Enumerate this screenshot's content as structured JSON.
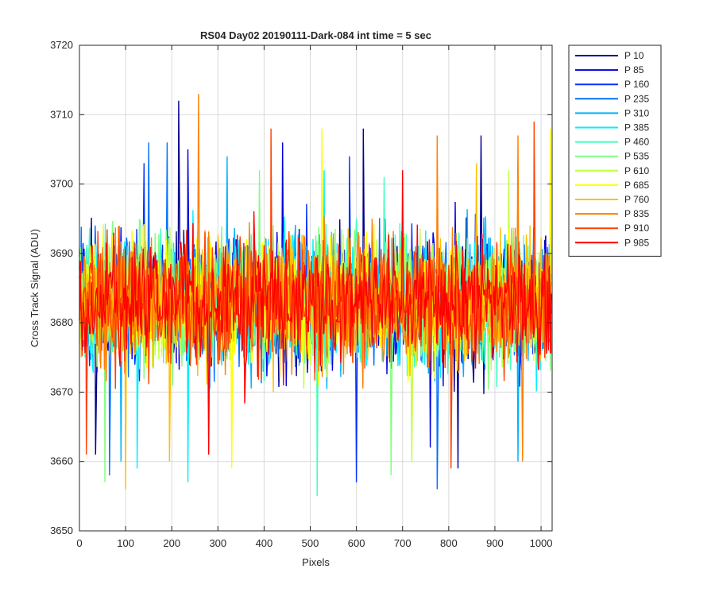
{
  "chart_data": {
    "type": "line",
    "title": "RS04 Day02 20190111-Dark-084 int time = 5 sec",
    "xlabel": "Pixels",
    "ylabel": "Cross Track Signal (ADU)",
    "xlim": [
      0,
      1024
    ],
    "ylim": [
      3650,
      3720
    ],
    "xticks": [
      0,
      100,
      200,
      300,
      400,
      500,
      600,
      700,
      800,
      900,
      1000
    ],
    "yticks": [
      3650,
      3660,
      3670,
      3680,
      3690,
      3700,
      3710,
      3720
    ],
    "grid": true,
    "legend_position": "outside-top-right",
    "noise_summary": {
      "points_per_series": 1024,
      "center": 3683,
      "typical_min": 3661,
      "typical_max": 3705
    },
    "series": [
      {
        "name": "P 10",
        "color": "#00008F",
        "peaks": [
          {
            "x": 215,
            "y": 3712
          },
          {
            "x": 615,
            "y": 3708
          },
          {
            "x": 870,
            "y": 3707
          }
        ],
        "troughs": [
          {
            "x": 35,
            "y": 3661
          },
          {
            "x": 820,
            "y": 3659
          }
        ]
      },
      {
        "name": "P 85",
        "color": "#0000DF",
        "peaks": [
          {
            "x": 235,
            "y": 3705
          },
          {
            "x": 440,
            "y": 3706
          }
        ],
        "troughs": [
          {
            "x": 760,
            "y": 3662
          }
        ]
      },
      {
        "name": "P 160",
        "color": "#0030FF",
        "peaks": [
          {
            "x": 140,
            "y": 3703
          },
          {
            "x": 585,
            "y": 3704
          }
        ],
        "troughs": [
          {
            "x": 600,
            "y": 3657
          }
        ]
      },
      {
        "name": "P 235",
        "color": "#0070FF",
        "peaks": [
          {
            "x": 150,
            "y": 3706
          },
          {
            "x": 190,
            "y": 3706
          }
        ],
        "troughs": [
          {
            "x": 65,
            "y": 3658
          },
          {
            "x": 775,
            "y": 3656
          }
        ]
      },
      {
        "name": "P 310",
        "color": "#00B0FF",
        "peaks": [
          {
            "x": 320,
            "y": 3704
          }
        ],
        "troughs": [
          {
            "x": 90,
            "y": 3660
          },
          {
            "x": 950,
            "y": 3660
          }
        ]
      },
      {
        "name": "P 385",
        "color": "#00F0FF",
        "peaks": [
          {
            "x": 530,
            "y": 3702
          }
        ],
        "troughs": [
          {
            "x": 125,
            "y": 3659
          },
          {
            "x": 235,
            "y": 3657
          }
        ]
      },
      {
        "name": "P 460",
        "color": "#40FFBF",
        "peaks": [
          {
            "x": 660,
            "y": 3701
          }
        ],
        "troughs": [
          {
            "x": 515,
            "y": 3655
          }
        ]
      },
      {
        "name": "P 535",
        "color": "#80FF80",
        "peaks": [
          {
            "x": 390,
            "y": 3702
          }
        ],
        "troughs": [
          {
            "x": 55,
            "y": 3657
          },
          {
            "x": 675,
            "y": 3658
          }
        ]
      },
      {
        "name": "P 610",
        "color": "#BFFF40",
        "peaks": [
          {
            "x": 930,
            "y": 3702
          }
        ],
        "troughs": [
          {
            "x": 720,
            "y": 3660
          }
        ]
      },
      {
        "name": "P 685",
        "color": "#FFFF00",
        "peaks": [
          {
            "x": 525,
            "y": 3708
          },
          {
            "x": 1020,
            "y": 3708
          }
        ],
        "troughs": [
          {
            "x": 330,
            "y": 3659
          }
        ]
      },
      {
        "name": "P 760",
        "color": "#FFBF00",
        "peaks": [
          {
            "x": 860,
            "y": 3703
          }
        ],
        "troughs": [
          {
            "x": 100,
            "y": 3656
          },
          {
            "x": 195,
            "y": 3660
          }
        ]
      },
      {
        "name": "P 835",
        "color": "#FF8000",
        "peaks": [
          {
            "x": 258,
            "y": 3713
          },
          {
            "x": 775,
            "y": 3707
          },
          {
            "x": 950,
            "y": 3707
          }
        ],
        "troughs": [
          {
            "x": 960,
            "y": 3660
          }
        ]
      },
      {
        "name": "P 910",
        "color": "#FF4000",
        "peaks": [
          {
            "x": 415,
            "y": 3708
          },
          {
            "x": 985,
            "y": 3709
          }
        ],
        "troughs": [
          {
            "x": 15,
            "y": 3661
          },
          {
            "x": 805,
            "y": 3659
          }
        ]
      },
      {
        "name": "P 985",
        "color": "#FF0000",
        "peaks": [
          {
            "x": 700,
            "y": 3702
          }
        ],
        "troughs": [
          {
            "x": 280,
            "y": 3661
          }
        ]
      }
    ]
  }
}
